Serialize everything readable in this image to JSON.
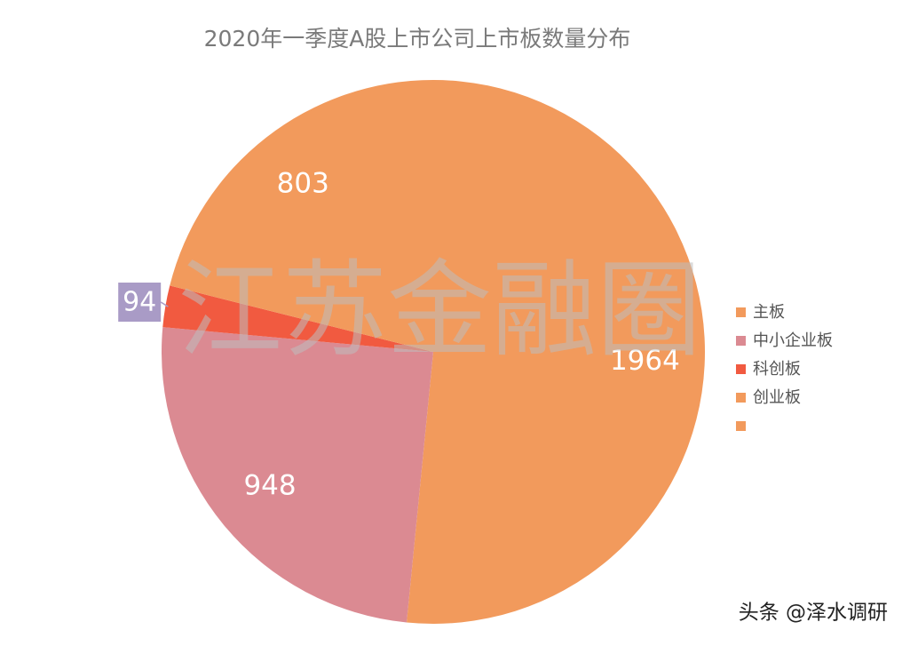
{
  "chart_data": {
    "type": "pie",
    "title": "2020年一季度A股上市公司上市板数量分布",
    "categories": [
      "主板",
      "中小企业板",
      "科创板",
      "创业板"
    ],
    "values": [
      1964,
      948,
      94,
      803
    ],
    "colors": [
      "#f29a5c",
      "#db8a92",
      "#f15a40",
      "#f29a5c"
    ],
    "watermark": "江苏金融圈"
  },
  "footer": "头条 @泽水调研"
}
